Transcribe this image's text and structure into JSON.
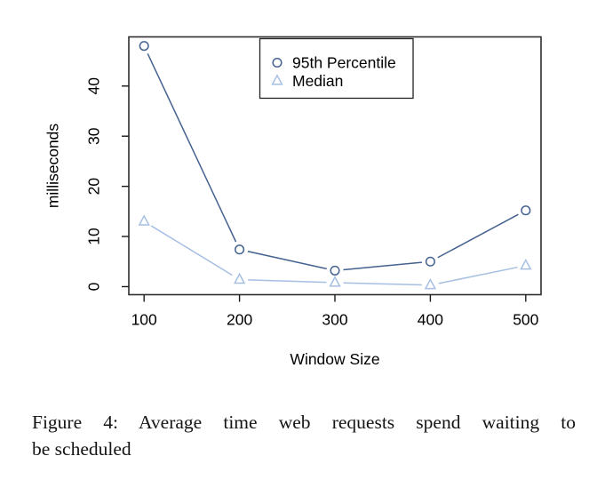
{
  "figure": {
    "caption": {
      "lines": [
        "Figure 4: Average time web requests spend waiting to",
        "be scheduled"
      ]
    }
  },
  "chart_data": {
    "type": "line",
    "title": "",
    "xlabel": "Window Size",
    "ylabel": "milliseconds",
    "x": [
      100,
      200,
      300,
      400,
      500
    ],
    "series": [
      {
        "name": "95th Percentile",
        "marker": "circle",
        "color": "#44618f",
        "values": [
          48,
          7.4,
          3.2,
          5.0,
          15.2
        ]
      },
      {
        "name": "Median",
        "marker": "triangle",
        "color": "#a6bfe3",
        "values": [
          13,
          1.4,
          0.8,
          0.3,
          4.2
        ]
      }
    ],
    "x_ticks": [
      100,
      200,
      300,
      400,
      500
    ],
    "y_ticks": [
      0,
      10,
      20,
      30,
      40
    ],
    "xlim": [
      84,
      516
    ],
    "ylim": [
      -1.6,
      49.8
    ],
    "grid": false,
    "legend_position": "top-center",
    "style": "R base plot, type='b' (lines with gaps around open markers)",
    "colors": {
      "plot_border": "#2f2f2f",
      "tick": "#1a1a1a",
      "text": "#000000"
    }
  }
}
